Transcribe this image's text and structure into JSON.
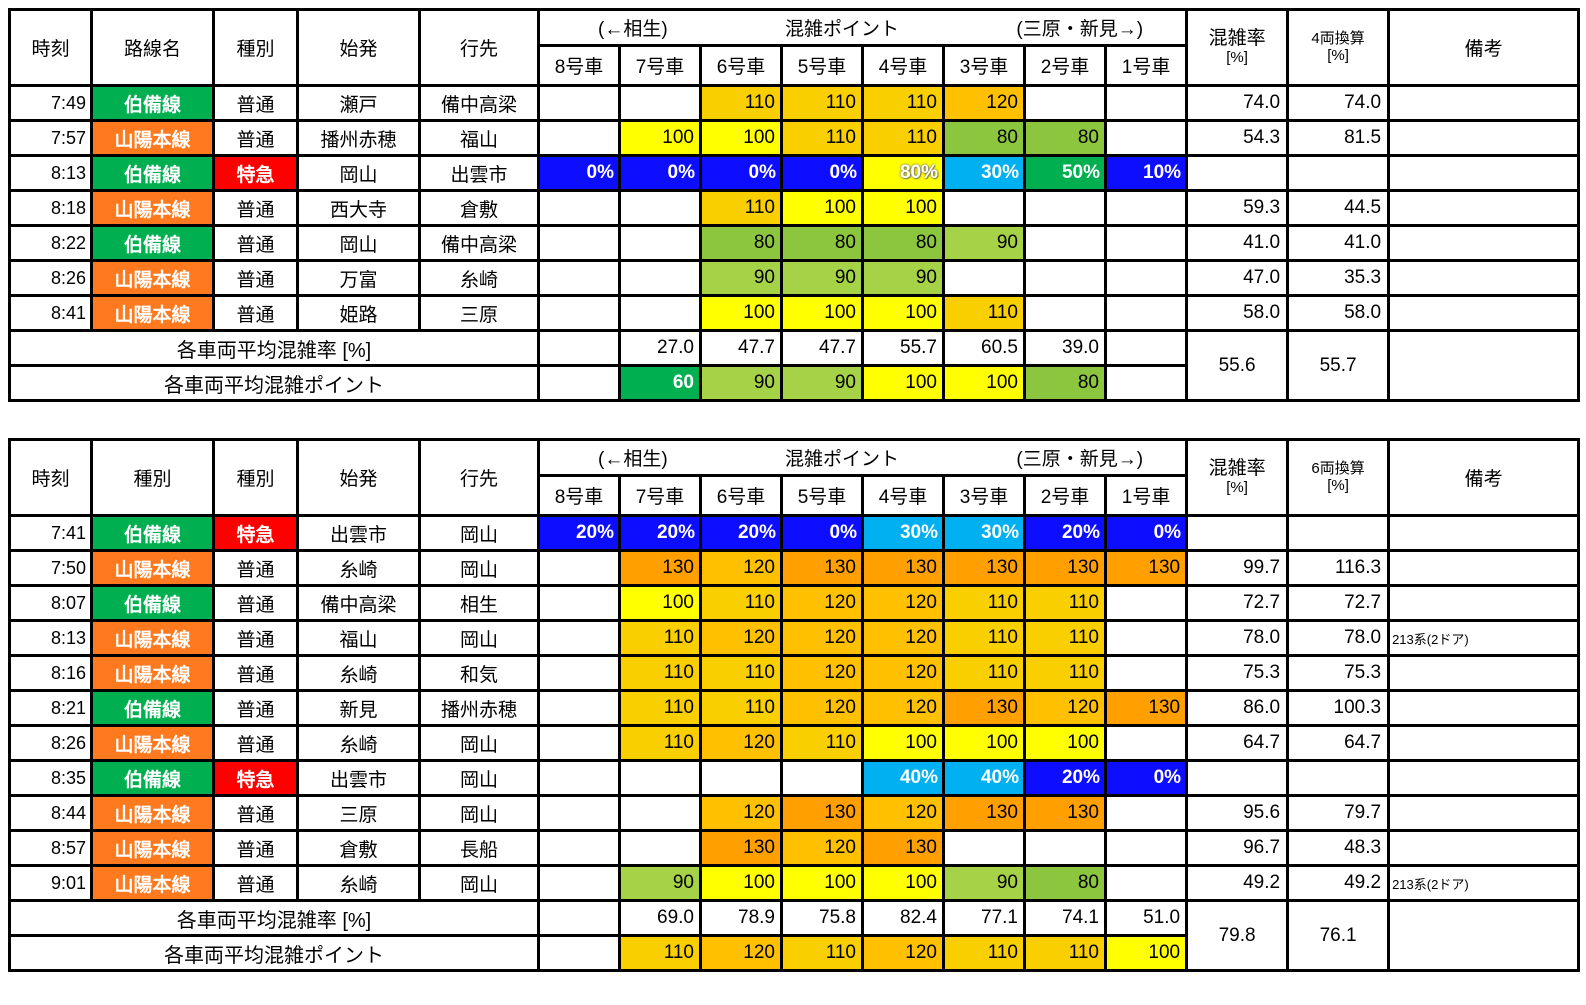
{
  "colors": {
    "line_green": "#00B050",
    "line_orange": "#FF7A1E",
    "type_red": "#FE0000",
    "pct_blue": "#0D0DFF",
    "pct_cyan": "#00B0F0",
    "pct_green": "#00B050",
    "pct_yellow": "#FFFF00",
    "points": {
      "60": "#00B050",
      "80": "#8CC63E",
      "90": "#A6D248",
      "100": "#FFFF00",
      "110": "#F9CF00",
      "120": "#FFC000",
      "130": "#FFA000"
    }
  },
  "chart_data": {
    "type": "table",
    "tables": [
      {
        "headers": {
          "time": "時刻",
          "line": "路線名",
          "type": "種別",
          "origin": "始発",
          "dest": "行先",
          "group": {
            "left": "(←相生)",
            "center": "混雑ポイント",
            "right": "(三原・新見→)"
          },
          "cars": [
            "8号車",
            "7号車",
            "6号車",
            "5号車",
            "4号車",
            "3号車",
            "2号車",
            "1号車"
          ],
          "rate": {
            "label": "混雑率",
            "unit": "[%]"
          },
          "conv": {
            "label": "4両換算",
            "unit": "[%]"
          },
          "remarks": "備考"
        },
        "rows": [
          {
            "time": "7:49",
            "line": "伯備線",
            "line_color": "line_green",
            "type": "普通",
            "type_color": "",
            "origin": "瀬戸",
            "dest": "備中高梁",
            "cars": [
              "",
              "",
              "110",
              "110",
              "110",
              "120",
              "",
              ""
            ],
            "rate": "74.0",
            "conv": "74.0",
            "remarks": ""
          },
          {
            "time": "7:57",
            "line": "山陽本線",
            "line_color": "line_orange",
            "type": "普通",
            "type_color": "",
            "origin": "播州赤穂",
            "dest": "福山",
            "cars": [
              "",
              "100",
              "100",
              "110",
              "110",
              "80",
              "80",
              ""
            ],
            "rate": "54.3",
            "conv": "81.5",
            "remarks": ""
          },
          {
            "time": "8:13",
            "line": "伯備線",
            "line_color": "line_green",
            "type": "特急",
            "type_color": "type_red",
            "origin": "岡山",
            "dest": "出雲市",
            "cars": [
              "0%",
              "0%",
              "0%",
              "0%",
              "80%",
              "30%",
              "50%",
              "10%"
            ],
            "rate": "",
            "conv": "",
            "remarks": ""
          },
          {
            "time": "8:18",
            "line": "山陽本線",
            "line_color": "line_orange",
            "type": "普通",
            "type_color": "",
            "origin": "西大寺",
            "dest": "倉敷",
            "cars": [
              "",
              "",
              "110",
              "100",
              "100",
              "",
              "",
              ""
            ],
            "rate": "59.3",
            "conv": "44.5",
            "remarks": ""
          },
          {
            "time": "8:22",
            "line": "伯備線",
            "line_color": "line_green",
            "type": "普通",
            "type_color": "",
            "origin": "岡山",
            "dest": "備中高梁",
            "cars": [
              "",
              "",
              "80",
              "80",
              "80",
              "90",
              "",
              ""
            ],
            "rate": "41.0",
            "conv": "41.0",
            "remarks": ""
          },
          {
            "time": "8:26",
            "line": "山陽本線",
            "line_color": "line_orange",
            "type": "普通",
            "type_color": "",
            "origin": "万富",
            "dest": "糸崎",
            "cars": [
              "",
              "",
              "90",
              "90",
              "90",
              "",
              "",
              ""
            ],
            "rate": "47.0",
            "conv": "35.3",
            "remarks": ""
          },
          {
            "time": "8:41",
            "line": "山陽本線",
            "line_color": "line_orange",
            "type": "普通",
            "type_color": "",
            "origin": "姫路",
            "dest": "三原",
            "cars": [
              "",
              "",
              "100",
              "100",
              "100",
              "110",
              "",
              ""
            ],
            "rate": "58.0",
            "conv": "58.0",
            "remarks": ""
          }
        ],
        "avg_rate_label": "各車両平均混雑率 [%]",
        "avg_rate": [
          "",
          "27.0",
          "47.7",
          "47.7",
          "55.7",
          "60.5",
          "39.0",
          ""
        ],
        "avg_point_label": "各車両平均混雑ポイント",
        "avg_points": [
          "",
          "60",
          "90",
          "90",
          "100",
          "100",
          "80",
          ""
        ],
        "total_rate": "55.6",
        "total_conv": "55.7",
        "total_remarks": ""
      },
      {
        "headers": {
          "time": "時刻",
          "line": "種別",
          "type": "種別",
          "origin": "始発",
          "dest": "行先",
          "group": {
            "left": "(←相生)",
            "center": "混雑ポイント",
            "right": "(三原・新見→)"
          },
          "cars": [
            "8号車",
            "7号車",
            "6号車",
            "5号車",
            "4号車",
            "3号車",
            "2号車",
            "1号車"
          ],
          "rate": {
            "label": "混雑率",
            "unit": "[%]"
          },
          "conv": {
            "label": "6両換算",
            "unit": "[%]"
          },
          "remarks": "備考"
        },
        "rows": [
          {
            "time": "7:41",
            "line": "伯備線",
            "line_color": "line_green",
            "type": "特急",
            "type_color": "type_red",
            "origin": "出雲市",
            "dest": "岡山",
            "cars": [
              "20%",
              "20%",
              "20%",
              "0%",
              "30%",
              "30%",
              "20%",
              "0%"
            ],
            "rate": "",
            "conv": "",
            "remarks": ""
          },
          {
            "time": "7:50",
            "line": "山陽本線",
            "line_color": "line_orange",
            "type": "普通",
            "type_color": "",
            "origin": "糸崎",
            "dest": "岡山",
            "cars": [
              "",
              "130",
              "120",
              "130",
              "130",
              "130",
              "130",
              "130"
            ],
            "rate": "99.7",
            "conv": "116.3",
            "remarks": ""
          },
          {
            "time": "8:07",
            "line": "伯備線",
            "line_color": "line_green",
            "type": "普通",
            "type_color": "",
            "origin": "備中高梁",
            "dest": "相生",
            "cars": [
              "",
              "100",
              "110",
              "120",
              "120",
              "110",
              "110",
              ""
            ],
            "rate": "72.7",
            "conv": "72.7",
            "remarks": ""
          },
          {
            "time": "8:13",
            "line": "山陽本線",
            "line_color": "line_orange",
            "type": "普通",
            "type_color": "",
            "origin": "福山",
            "dest": "岡山",
            "cars": [
              "",
              "110",
              "120",
              "120",
              "120",
              "110",
              "110",
              ""
            ],
            "rate": "78.0",
            "conv": "78.0",
            "remarks": "213系(2ドア)"
          },
          {
            "time": "8:16",
            "line": "山陽本線",
            "line_color": "line_orange",
            "type": "普通",
            "type_color": "",
            "origin": "糸崎",
            "dest": "和気",
            "cars": [
              "",
              "110",
              "110",
              "120",
              "120",
              "110",
              "110",
              ""
            ],
            "rate": "75.3",
            "conv": "75.3",
            "remarks": ""
          },
          {
            "time": "8:21",
            "line": "伯備線",
            "line_color": "line_green",
            "type": "普通",
            "type_color": "",
            "origin": "新見",
            "dest": "播州赤穂",
            "cars": [
              "",
              "110",
              "110",
              "120",
              "120",
              "130",
              "120",
              "130"
            ],
            "rate": "86.0",
            "conv": "100.3",
            "remarks": ""
          },
          {
            "time": "8:26",
            "line": "山陽本線",
            "line_color": "line_orange",
            "type": "普通",
            "type_color": "",
            "origin": "糸崎",
            "dest": "岡山",
            "cars": [
              "",
              "110",
              "120",
              "110",
              "100",
              "100",
              "100",
              ""
            ],
            "rate": "64.7",
            "conv": "64.7",
            "remarks": ""
          },
          {
            "time": "8:35",
            "line": "伯備線",
            "line_color": "line_green",
            "type": "特急",
            "type_color": "type_red",
            "origin": "出雲市",
            "dest": "岡山",
            "cars": [
              "",
              "",
              "",
              "",
              "40%",
              "40%",
              "20%",
              "0%"
            ],
            "rate": "",
            "conv": "",
            "remarks": ""
          },
          {
            "time": "8:44",
            "line": "山陽本線",
            "line_color": "line_orange",
            "type": "普通",
            "type_color": "",
            "origin": "三原",
            "dest": "岡山",
            "cars": [
              "",
              "",
              "120",
              "130",
              "120",
              "130",
              "130",
              ""
            ],
            "rate": "95.6",
            "conv": "79.7",
            "remarks": ""
          },
          {
            "time": "8:57",
            "line": "山陽本線",
            "line_color": "line_orange",
            "type": "普通",
            "type_color": "",
            "origin": "倉敷",
            "dest": "長船",
            "cars": [
              "",
              "",
              "130",
              "120",
              "130",
              "",
              "",
              ""
            ],
            "rate": "96.7",
            "conv": "48.3",
            "remarks": ""
          },
          {
            "time": "9:01",
            "line": "山陽本線",
            "line_color": "line_orange",
            "type": "普通",
            "type_color": "",
            "origin": "糸崎",
            "dest": "岡山",
            "cars": [
              "",
              "90",
              "100",
              "100",
              "100",
              "90",
              "80",
              ""
            ],
            "rate": "49.2",
            "conv": "49.2",
            "remarks": "213系(2ドア)"
          }
        ],
        "avg_rate_label": "各車両平均混雑率 [%]",
        "avg_rate": [
          "",
          "69.0",
          "78.9",
          "75.8",
          "82.4",
          "77.1",
          "74.1",
          "51.0"
        ],
        "avg_point_label": "各車両平均混雑ポイント",
        "avg_points": [
          "",
          "110",
          "120",
          "110",
          "120",
          "110",
          "110",
          "100"
        ],
        "total_rate": "79.8",
        "total_conv": "76.1",
        "total_remarks": ""
      }
    ]
  }
}
